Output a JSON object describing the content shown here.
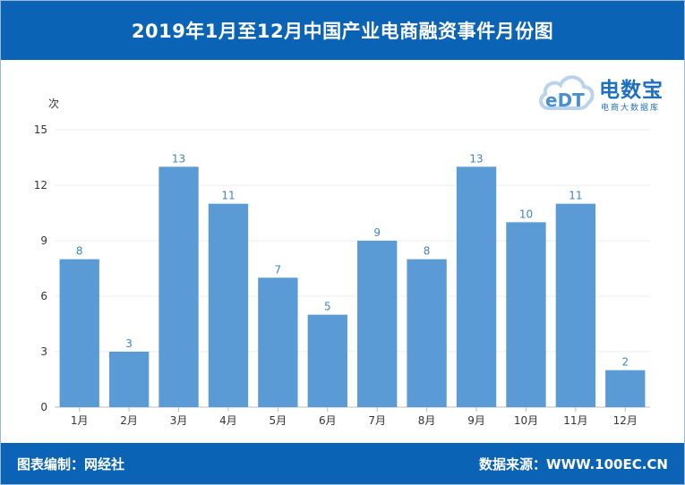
{
  "title": "2019年1月至12月中国产业电商融资事件月份图",
  "footer": {
    "left": "图表编制：网经社",
    "right": "数据来源：WWW.100EC.CN"
  },
  "logo": {
    "mark": "eDT",
    "name": "电数宝",
    "subtitle": "电商大数据库"
  },
  "colors": {
    "header": "#0b63b6",
    "bar": "#5b9bd5",
    "data_label": "#3f86c7"
  },
  "chart_data": {
    "type": "bar",
    "title": "2019年1月至12月中国产业电商融资事件月份图",
    "xlabel": "",
    "ylabel": "次",
    "ylim": [
      0,
      15
    ],
    "yticks": [
      0,
      3,
      6,
      9,
      12,
      15
    ],
    "grid": true,
    "categories": [
      "1月",
      "2月",
      "3月",
      "4月",
      "5月",
      "6月",
      "7月",
      "8月",
      "9月",
      "10月",
      "11月",
      "12月"
    ],
    "values": [
      8,
      3,
      13,
      11,
      7,
      5,
      9,
      8,
      13,
      10,
      11,
      2
    ]
  }
}
